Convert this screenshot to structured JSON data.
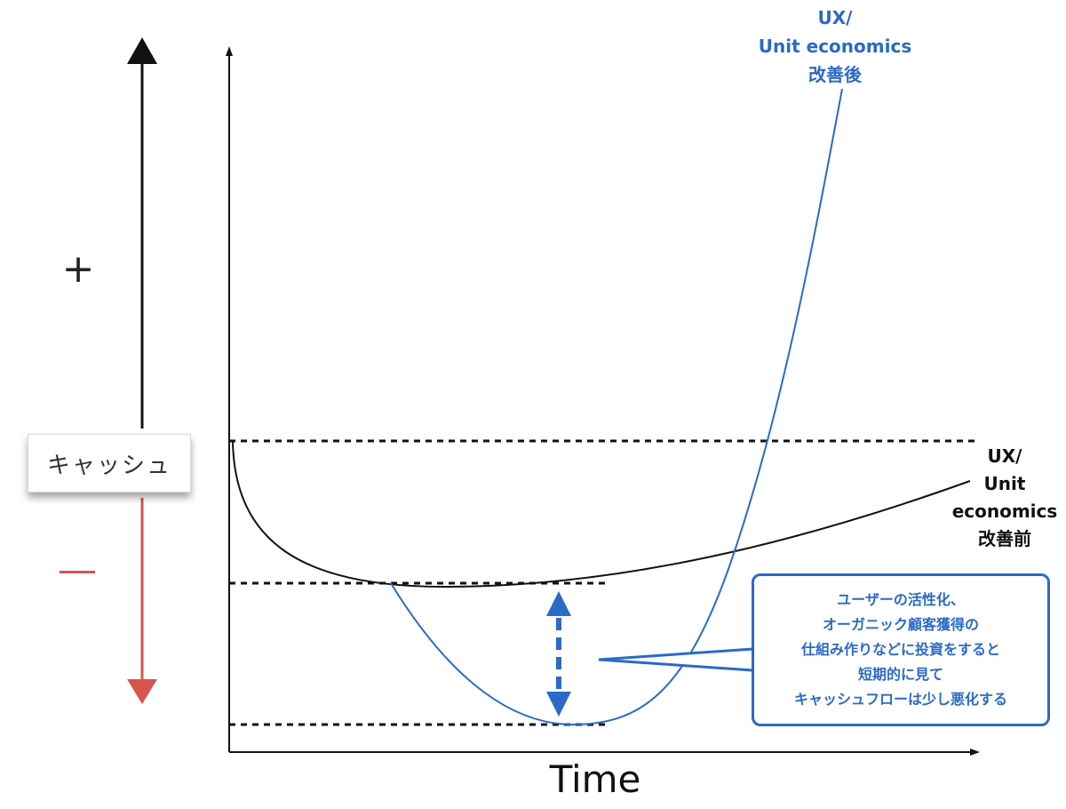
{
  "cash_axis": {
    "label": "キャッシュ",
    "plus": "+",
    "minus": "−",
    "up_color": "#111111",
    "down_color": "#d9534f"
  },
  "x_axis": {
    "label": "Time"
  },
  "curves": {
    "after": {
      "label_lines": [
        "UX/",
        "Unit economics",
        "改善後"
      ],
      "color": "#2a6ac8"
    },
    "before": {
      "label_lines": [
        "UX/",
        "Unit",
        "economics",
        "改善前"
      ],
      "color": "#111111"
    }
  },
  "callout": {
    "lines": [
      "ユーザーの活性化、",
      "オーガニック顧客獲得の",
      "仕組み作りなどに投資をすると",
      "短期的に見て",
      "キャッシュフローは少し悪化する"
    ],
    "color": "#2a6ac8"
  },
  "icons": {
    "cash-up-arrow": "arrow-up-icon",
    "cash-down-arrow": "arrow-down-icon",
    "dip-arrow": "double-arrow-icon"
  }
}
